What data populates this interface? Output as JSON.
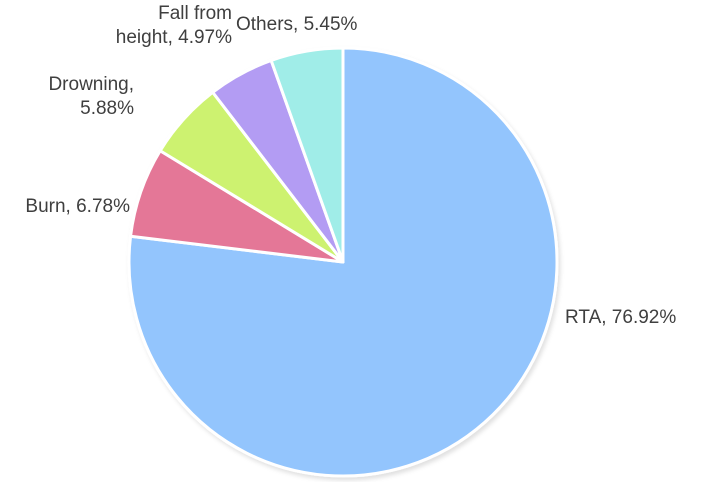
{
  "chart_data": {
    "type": "pie",
    "title": "",
    "legend": "none",
    "start_angle": "12 o'clock, clockwise",
    "slices": [
      {
        "name": "RTA",
        "value": 76.92,
        "label": "RTA, 76.92%",
        "color": "#93c5fd"
      },
      {
        "name": "Burn",
        "value": 6.78,
        "label": "Burn, 6.78%",
        "color": "#e47797"
      },
      {
        "name": "Drowning",
        "value": 5.88,
        "label": "Drowning, 5.88%",
        "label_lines": [
          "Drowning,",
          "5.88%"
        ],
        "color": "#cdf26f"
      },
      {
        "name": "Fall from height",
        "value": 4.97,
        "label": "Fall from height, 4.97%",
        "label_lines": [
          "Fall from",
          "height, 4.97%"
        ],
        "color": "#b39cf3"
      },
      {
        "name": "Others",
        "value": 5.45,
        "label": "Others, 5.45%",
        "color": "#a0ede8"
      }
    ]
  }
}
